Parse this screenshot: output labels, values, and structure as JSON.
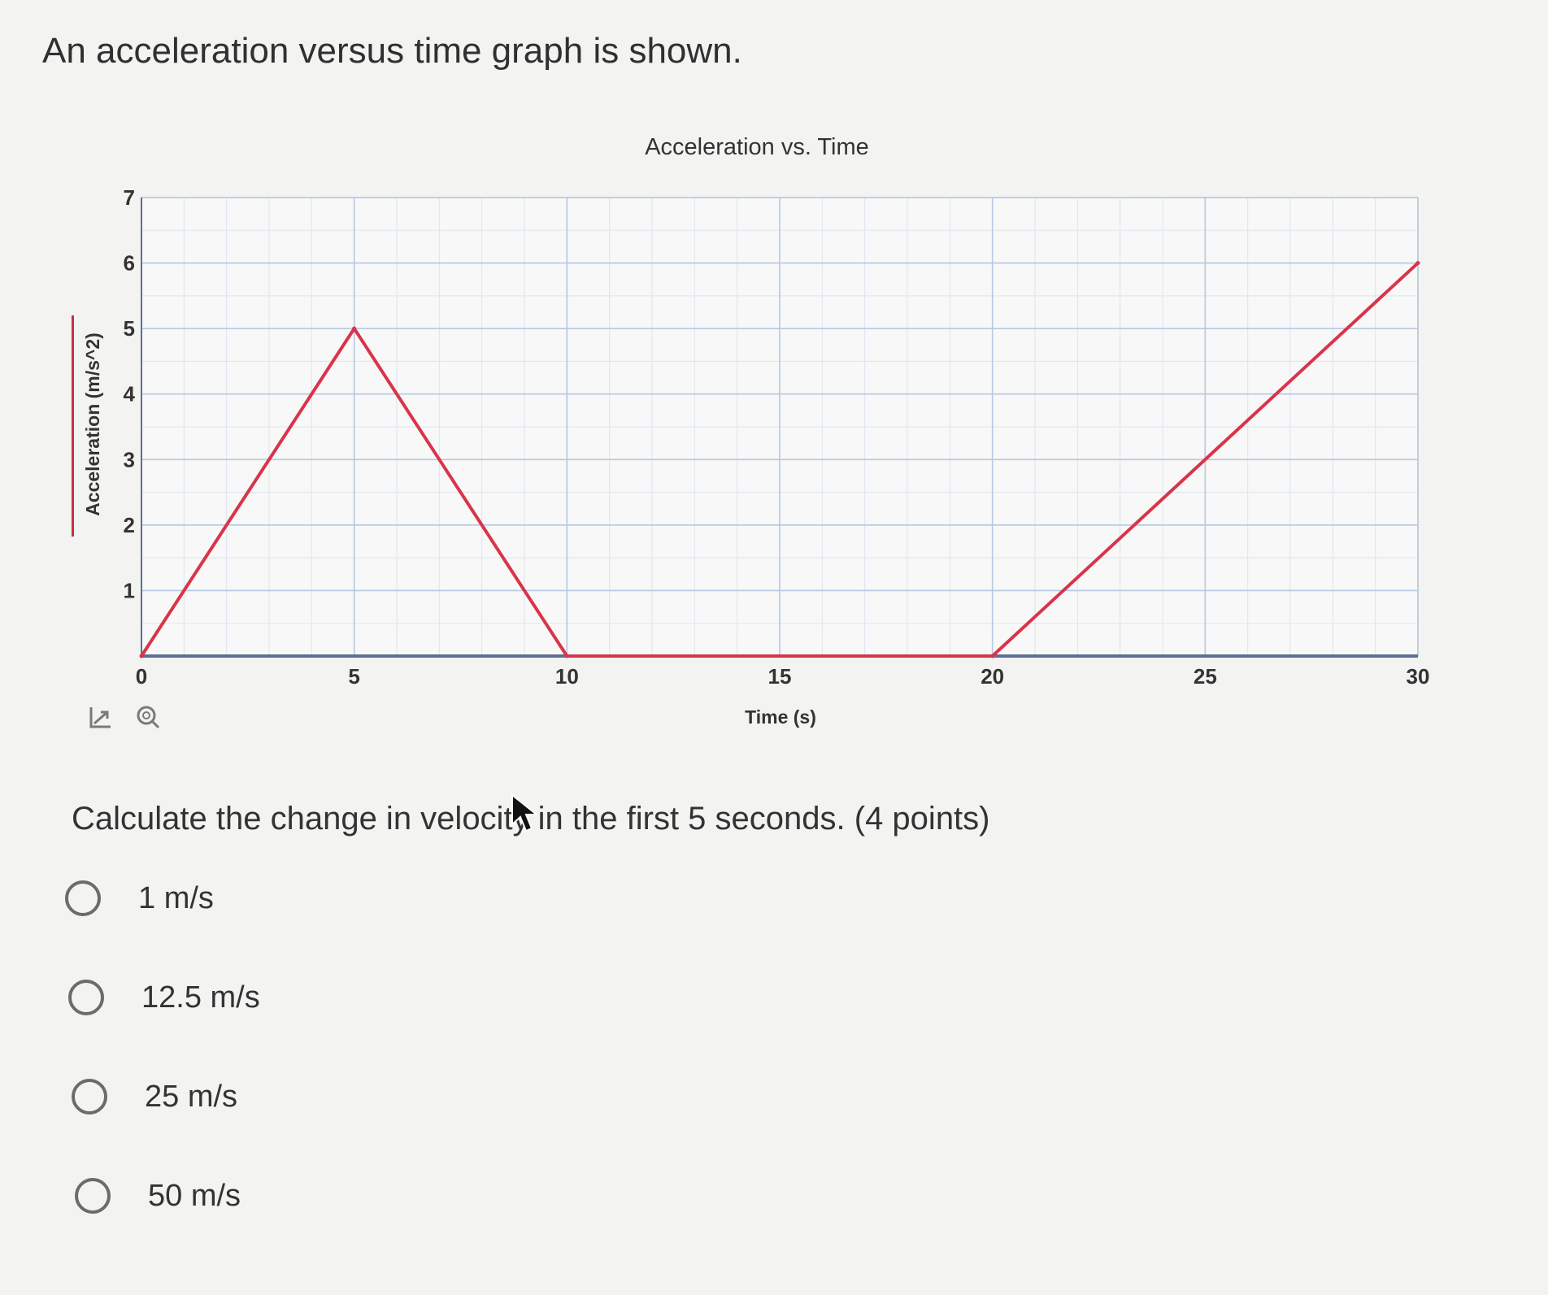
{
  "question": {
    "header": "An acceleration versus time graph is shown.",
    "prompt": "Calculate the change in velocity in the first 5 seconds. (4 points)",
    "options": [
      {
        "label": "1 m/s"
      },
      {
        "label": "12.5 m/s"
      },
      {
        "label": "25 m/s"
      },
      {
        "label": "50 m/s"
      }
    ]
  },
  "chart_toolbar": {
    "icons": [
      "reset-axes-icon",
      "zoom-icon"
    ]
  },
  "chart_data": {
    "type": "line",
    "title": "Acceleration vs. Time",
    "xlabel": "Time (s)",
    "ylabel": "Acceleration (m/s^2)",
    "xlim": [
      0,
      30
    ],
    "ylim": [
      0,
      7
    ],
    "x_ticks": [
      "0",
      "5",
      "10",
      "15",
      "20",
      "25",
      "30"
    ],
    "y_ticks": [
      "1",
      "2",
      "3",
      "4",
      "5",
      "6",
      "7"
    ],
    "grid": true,
    "legend": "none",
    "series": [
      {
        "color": "#d9344a",
        "x": [
          0,
          5,
          10,
          20,
          30
        ],
        "y": [
          0,
          5,
          0,
          0,
          6
        ]
      }
    ]
  }
}
